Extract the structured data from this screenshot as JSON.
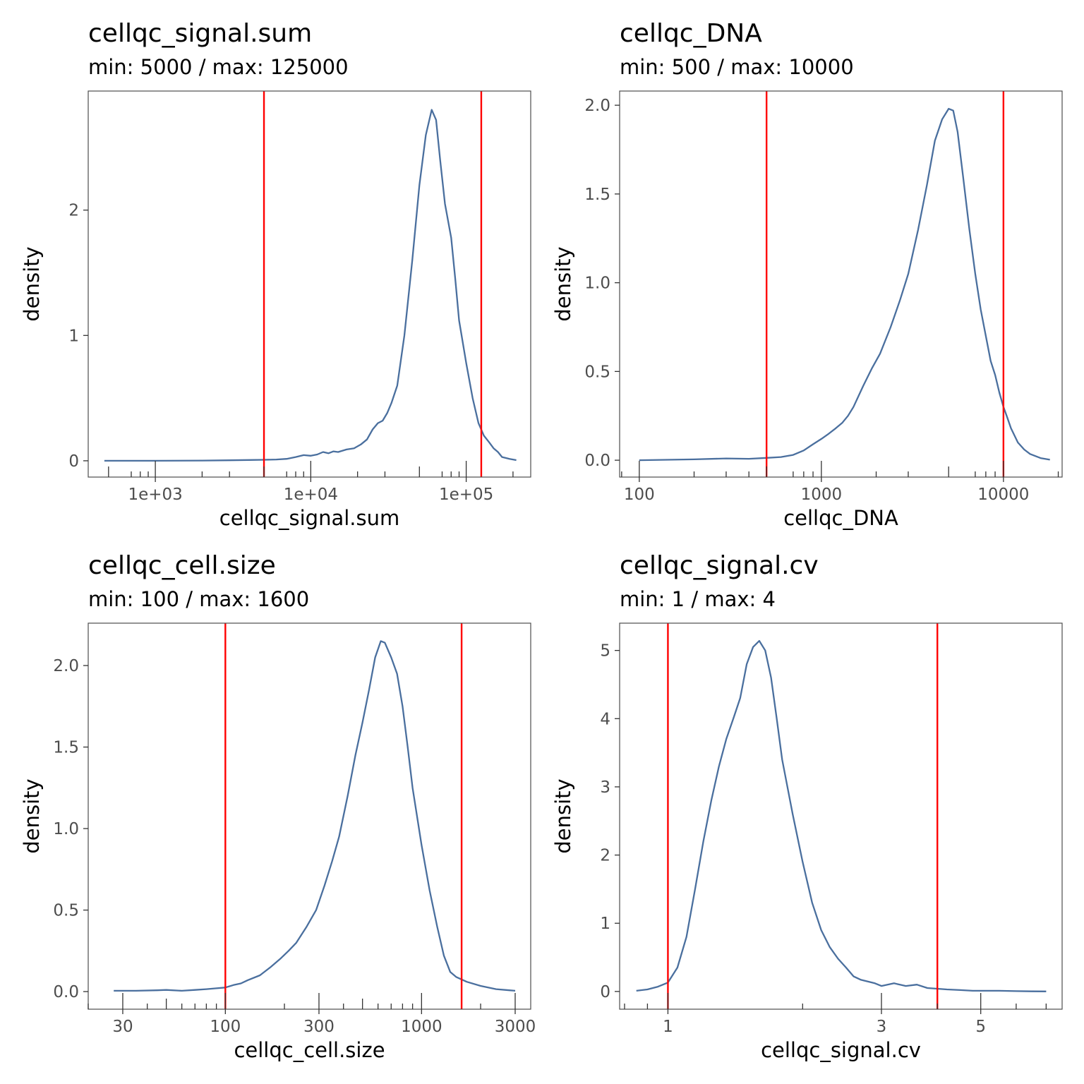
{
  "colors": {
    "density": "#4a6f9e",
    "threshold": "#ff0000"
  },
  "chart_data": [
    {
      "type": "line",
      "title": "cellqc_signal.sum",
      "subtitle": "min: 5000 / max: 125000",
      "xlabel": "cellqc_signal.sum",
      "ylabel": "density",
      "x_scale": "log10",
      "xlim": [
        370,
        260000
      ],
      "ylim": [
        -0.13,
        2.95
      ],
      "x_ticks": [
        1000,
        10000,
        100000
      ],
      "x_tick_labels": [
        "1e+03",
        "1e+04",
        "1e+05"
      ],
      "x_minor_ticks": [
        500,
        700,
        800,
        900,
        2000,
        3000,
        5000,
        7000,
        8000,
        9000,
        20000,
        30000,
        50000,
        70000,
        80000,
        90000,
        200000
      ],
      "y_ticks": [
        0,
        1,
        2
      ],
      "y_tick_labels": [
        "0",
        "1",
        "2"
      ],
      "thresholds": [
        5000,
        125000
      ],
      "grid": false,
      "series": [
        {
          "x": [
            470,
            1000,
            2000,
            3000,
            4000,
            5000,
            6000,
            7000,
            8000,
            9000,
            10000,
            11000,
            12000,
            13000,
            14000,
            15000,
            17000,
            19000,
            21000,
            23000,
            25000,
            27000,
            29000,
            31000,
            33000,
            36000,
            40000,
            45000,
            50000,
            55000,
            60000,
            64000,
            68000,
            73000,
            80000,
            85000,
            90000,
            100000,
            110000,
            120000,
            130000,
            140000,
            150000,
            160000,
            170000,
            190000,
            210000
          ],
          "y": [
            0,
            0,
            0.002,
            0.004,
            0.006,
            0.008,
            0.01,
            0.015,
            0.03,
            0.045,
            0.04,
            0.05,
            0.07,
            0.06,
            0.075,
            0.07,
            0.09,
            0.1,
            0.13,
            0.17,
            0.25,
            0.3,
            0.32,
            0.38,
            0.46,
            0.6,
            1.0,
            1.6,
            2.2,
            2.6,
            2.8,
            2.72,
            2.4,
            2.05,
            1.78,
            1.45,
            1.12,
            0.78,
            0.5,
            0.3,
            0.2,
            0.15,
            0.1,
            0.07,
            0.03,
            0.015,
            0.005
          ]
        }
      ]
    },
    {
      "type": "line",
      "title": "cellqc_DNA",
      "subtitle": "min: 500 / max: 10000",
      "xlabel": "cellqc_DNA",
      "ylabel": "density",
      "x_scale": "log10",
      "xlim": [
        78,
        21000
      ],
      "ylim": [
        -0.095,
        2.08
      ],
      "x_ticks": [
        100,
        1000,
        10000
      ],
      "x_tick_labels": [
        "100",
        "1000",
        "10000"
      ],
      "x_minor_ticks": [
        80,
        200,
        300,
        400,
        500,
        700,
        800,
        900,
        2000,
        3000,
        5000,
        7000,
        8000,
        9000,
        20000
      ],
      "y_ticks": [
        0,
        0.5,
        1,
        1.5,
        2
      ],
      "y_tick_labels": [
        "0.0",
        "0.5",
        "1.0",
        "1.5",
        "2.0"
      ],
      "thresholds": [
        500,
        10000
      ],
      "grid": false,
      "series": [
        {
          "x": [
            100,
            200,
            300,
            400,
            500,
            600,
            700,
            800,
            900,
            1000,
            1100,
            1200,
            1300,
            1400,
            1500,
            1700,
            1900,
            2100,
            2400,
            2700,
            3000,
            3400,
            3800,
            4200,
            4600,
            5000,
            5300,
            5600,
            6000,
            6500,
            7000,
            7500,
            8000,
            8500,
            9000,
            9500,
            10000,
            10500,
            11000,
            12000,
            13000,
            14000,
            16000,
            18000
          ],
          "y": [
            0,
            0.005,
            0.01,
            0.008,
            0.013,
            0.018,
            0.03,
            0.055,
            0.09,
            0.12,
            0.15,
            0.18,
            0.21,
            0.25,
            0.3,
            0.42,
            0.52,
            0.6,
            0.75,
            0.9,
            1.05,
            1.3,
            1.55,
            1.8,
            1.92,
            1.98,
            1.97,
            1.85,
            1.6,
            1.3,
            1.05,
            0.85,
            0.7,
            0.56,
            0.48,
            0.38,
            0.3,
            0.24,
            0.18,
            0.1,
            0.06,
            0.035,
            0.012,
            0.003
          ]
        }
      ]
    },
    {
      "type": "line",
      "title": "cellqc_cell.size",
      "subtitle": "min: 100 / max: 1600",
      "xlabel": "cellqc_cell.size",
      "ylabel": "density",
      "x_scale": "log10",
      "xlim": [
        20,
        3600
      ],
      "ylim": [
        -0.108,
        2.26
      ],
      "x_ticks": [
        30,
        100,
        300,
        1000,
        3000
      ],
      "x_tick_labels": [
        "30",
        "100",
        "300",
        "1000",
        "3000"
      ],
      "x_minor_ticks": [
        20,
        40,
        50,
        60,
        70,
        80,
        90,
        200,
        400,
        500,
        600,
        700,
        800,
        900,
        2000
      ],
      "y_ticks": [
        0,
        0.5,
        1,
        1.5,
        2
      ],
      "y_tick_labels": [
        "0.0",
        "0.5",
        "1.0",
        "1.5",
        "2.0"
      ],
      "thresholds": [
        100,
        1600
      ],
      "grid": false,
      "series": [
        {
          "x": [
            27,
            35,
            45,
            50,
            60,
            70,
            80,
            90,
            100,
            110,
            120,
            130,
            150,
            170,
            190,
            210,
            230,
            260,
            290,
            320,
            350,
            380,
            420,
            460,
            500,
            540,
            580,
            620,
            650,
            700,
            750,
            800,
            850,
            900,
            1000,
            1100,
            1200,
            1300,
            1400,
            1500,
            1700,
            2000,
            2400,
            2800,
            3000
          ],
          "y": [
            0.005,
            0.005,
            0.008,
            0.01,
            0.005,
            0.01,
            0.015,
            0.02,
            0.025,
            0.04,
            0.05,
            0.07,
            0.1,
            0.15,
            0.2,
            0.25,
            0.3,
            0.4,
            0.5,
            0.65,
            0.8,
            0.95,
            1.2,
            1.45,
            1.65,
            1.85,
            2.05,
            2.15,
            2.14,
            2.05,
            1.95,
            1.75,
            1.5,
            1.25,
            0.9,
            0.62,
            0.4,
            0.22,
            0.12,
            0.09,
            0.06,
            0.035,
            0.015,
            0.008,
            0.005
          ]
        }
      ]
    },
    {
      "type": "line",
      "title": "cellqc_signal.cv",
      "subtitle": "min: 1 / max: 4",
      "xlabel": "cellqc_signal.cv",
      "ylabel": "density",
      "x_scale": "log10",
      "xlim": [
        0.78,
        7.6
      ],
      "ylim": [
        -0.26,
        5.4
      ],
      "x_ticks": [
        1,
        3,
        5
      ],
      "x_tick_labels": [
        "1",
        "3",
        "5"
      ],
      "x_minor_ticks": [
        0.8,
        0.9,
        2,
        4,
        6,
        7
      ],
      "y_ticks": [
        0,
        1,
        2,
        3,
        4,
        5
      ],
      "y_tick_labels": [
        "0",
        "1",
        "2",
        "3",
        "4",
        "5"
      ],
      "thresholds": [
        1,
        4
      ],
      "grid": false,
      "series": [
        {
          "x": [
            0.85,
            0.9,
            0.95,
            1.0,
            1.05,
            1.1,
            1.15,
            1.2,
            1.25,
            1.3,
            1.35,
            1.4,
            1.45,
            1.5,
            1.55,
            1.6,
            1.65,
            1.7,
            1.75,
            1.8,
            1.9,
            2.0,
            2.1,
            2.2,
            2.3,
            2.4,
            2.5,
            2.6,
            2.7,
            2.9,
            3.0,
            3.2,
            3.4,
            3.6,
            3.8,
            4.0,
            4.2,
            4.5,
            4.8,
            5.0,
            5.5,
            6.0,
            6.5,
            7.0
          ],
          "y": [
            0.01,
            0.03,
            0.07,
            0.13,
            0.35,
            0.8,
            1.5,
            2.2,
            2.8,
            3.3,
            3.7,
            4.0,
            4.3,
            4.8,
            5.05,
            5.14,
            5.0,
            4.6,
            4.0,
            3.4,
            2.6,
            1.9,
            1.3,
            0.9,
            0.65,
            0.48,
            0.35,
            0.22,
            0.17,
            0.12,
            0.08,
            0.12,
            0.08,
            0.1,
            0.05,
            0.04,
            0.03,
            0.02,
            0.01,
            0.01,
            0.01,
            0.005,
            0.002,
            0.001
          ]
        }
      ]
    }
  ]
}
